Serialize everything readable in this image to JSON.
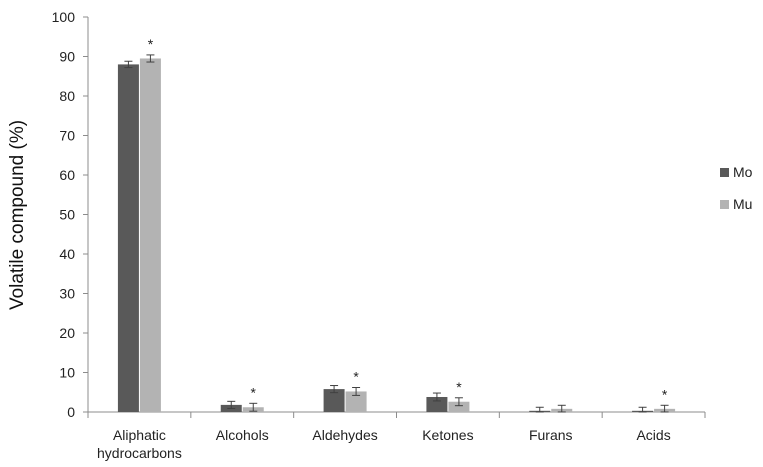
{
  "chart_data": {
    "type": "bar",
    "title": "",
    "xlabel": "",
    "ylabel": "Volatile compound (%)",
    "ylim": [
      0,
      100
    ],
    "yticks": [
      0,
      10,
      20,
      30,
      40,
      50,
      60,
      70,
      80,
      90,
      100
    ],
    "categories": [
      [
        "Aliphatic",
        "hydrocarbons"
      ],
      [
        "Alcohols"
      ],
      [
        "Aldehydes"
      ],
      [
        "Ketones"
      ],
      [
        "Furans"
      ],
      [
        "Acids"
      ]
    ],
    "series": [
      {
        "name": "Mo",
        "color": "#595959",
        "values": [
          88.0,
          1.8,
          5.8,
          3.8,
          0.3,
          0.3
        ],
        "errors": [
          0.8,
          0.9,
          0.9,
          1.0,
          0.9,
          0.9
        ]
      },
      {
        "name": "Mu",
        "color": "#b3b3b3",
        "values": [
          89.5,
          1.2,
          5.2,
          2.6,
          0.8,
          0.8
        ],
        "errors": [
          0.9,
          1.0,
          1.0,
          1.0,
          0.9,
          0.9
        ]
      }
    ],
    "significance_marker": "*",
    "significant_categories": [
      0,
      1,
      2,
      3,
      5
    ],
    "legend": {
      "position": "right"
    },
    "grid": false
  }
}
